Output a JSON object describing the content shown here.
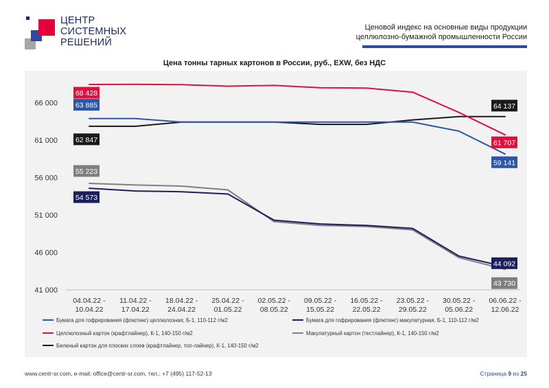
{
  "logo": {
    "lines": [
      "ЦЕНТР",
      "СИСТЕМНЫХ",
      "РЕШЕНИЙ"
    ],
    "colors": {
      "red": "#e4003a",
      "navy": "#1f2a5c",
      "blue": "#2e4a9e",
      "gray": "#a6a6a6"
    }
  },
  "header": {
    "title_line1": "Ценовой индекс на основные виды продукции",
    "title_line2": "целлюлозно-бумажной промышленности России"
  },
  "chart_data": {
    "type": "line",
    "title": "Цена тонны тарных картонов в России, руб., EXW, без НДС",
    "categories": [
      [
        "04.04.22 -",
        "10.04.22"
      ],
      [
        "11.04.22 -",
        "17.04.22"
      ],
      [
        "18.04.22 -",
        "24.04.22"
      ],
      [
        "25.04.22 -",
        "01.05.22"
      ],
      [
        "02.05.22 -",
        "08.05.22"
      ],
      [
        "09.05.22 -",
        "15.05.22"
      ],
      [
        "16.05.22 -",
        "22.05.22"
      ],
      [
        "23.05.22 -",
        "29.05.22"
      ],
      [
        "30.05.22 -",
        "05.06.22"
      ],
      [
        "06.06.22 -",
        "12.06.22"
      ]
    ],
    "ylim": [
      41000,
      70000
    ],
    "yticks": [
      41000,
      46000,
      51000,
      56000,
      61000,
      66000
    ],
    "ytick_labels": [
      "41 000",
      "46 000",
      "51 000",
      "56 000",
      "61 000",
      "66 000"
    ],
    "grid": false,
    "legend_position": "bottom",
    "series": [
      {
        "name": "Бумага для гофрирования (флютинг) целлюлозная, Б-1, 110-112 г/м2",
        "color": "#2e56a8",
        "values": [
          63885,
          63885,
          63400,
          63400,
          63400,
          63400,
          63400,
          63400,
          62200,
          59141
        ],
        "labels": [
          {
            "index": 0,
            "text": "63 885",
            "side": "left"
          },
          {
            "index": 9,
            "text": "59 141",
            "side": "right"
          }
        ]
      },
      {
        "name": "Бумага для гофрирования (флютинг) макулатурная, Б-1, 110-112 г/м2",
        "color": "#1b1f5e",
        "values": [
          54573,
          54200,
          54100,
          53800,
          50300,
          49800,
          49600,
          49200,
          45500,
          44092
        ],
        "labels": [
          {
            "index": 0,
            "text": "54 573",
            "side": "left"
          },
          {
            "index": 9,
            "text": "44 092",
            "side": "right"
          }
        ]
      },
      {
        "name": "Целлюлозный картон (крафтлайнер), К-1, 140-150 г/м2",
        "color": "#e0103e",
        "values": [
          68428,
          68450,
          68400,
          68200,
          68300,
          68000,
          67950,
          67400,
          64700,
          61707
        ],
        "labels": [
          {
            "index": 0,
            "text": "68 428",
            "side": "left"
          },
          {
            "index": 9,
            "text": "61 707",
            "side": "right"
          }
        ]
      },
      {
        "name": "Макулатурный картон (тестлайнер), К-1, 140-150 г/м2",
        "color": "#7f7f7f",
        "values": [
          55223,
          55000,
          54850,
          54350,
          50100,
          49600,
          49450,
          49000,
          45300,
          43730
        ],
        "labels": [
          {
            "index": 0,
            "text": "55 223",
            "side": "left"
          },
          {
            "index": 9,
            "text": "43 730",
            "side": "right"
          }
        ]
      },
      {
        "name": "Беленый картон для плоских слоев (крафтлайнер, топ-лайнер), К-1, 140-150 г/м2",
        "color": "#1a1a1a",
        "values": [
          62847,
          62847,
          63400,
          63400,
          63400,
          63100,
          63100,
          63700,
          64137,
          64137
        ],
        "labels": [
          {
            "index": 0,
            "text": "62 847",
            "side": "left"
          },
          {
            "index": 9,
            "text": "64 137",
            "side": "right"
          }
        ]
      }
    ]
  },
  "footer": {
    "contacts": "www.centr-sr.com, e-mail: office@centr-sr.com, тел.: +7 (495) 117-52-13",
    "page_prefix": "Страница ",
    "page_num": "9",
    "page_mid": " из ",
    "page_total": "25"
  }
}
